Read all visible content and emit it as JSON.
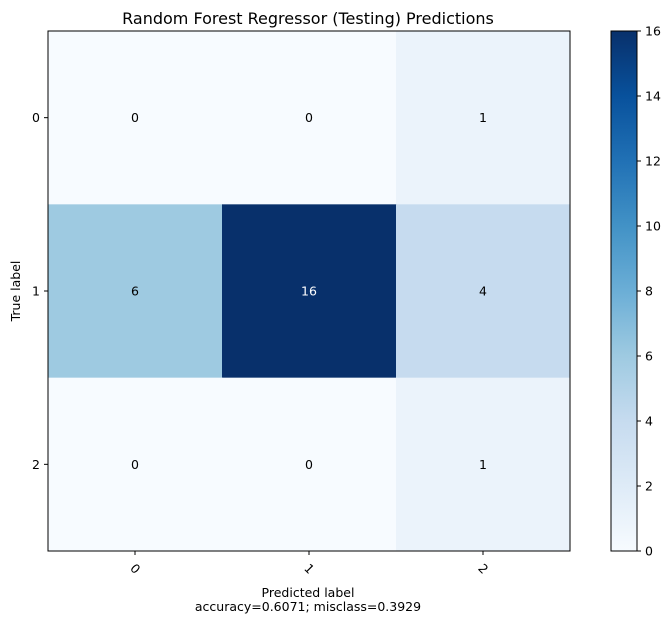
{
  "chart_data": {
    "type": "heatmap",
    "title": "Random Forest Regressor (Testing) Predictions",
    "xlabel": "Predicted label",
    "xlabel_sub": "accuracy=0.6071; misclass=0.3929",
    "ylabel": "True label",
    "x_categories": [
      "0",
      "1",
      "2"
    ],
    "y_categories": [
      "0",
      "1",
      "2"
    ],
    "matrix": [
      [
        0,
        0,
        1
      ],
      [
        6,
        16,
        4
      ],
      [
        0,
        0,
        1
      ]
    ],
    "colormap": "Blues",
    "colorbar": {
      "min": 0,
      "max": 16,
      "ticks": [
        "0",
        "2",
        "4",
        "6",
        "8",
        "10",
        "12",
        "14",
        "16"
      ]
    }
  }
}
